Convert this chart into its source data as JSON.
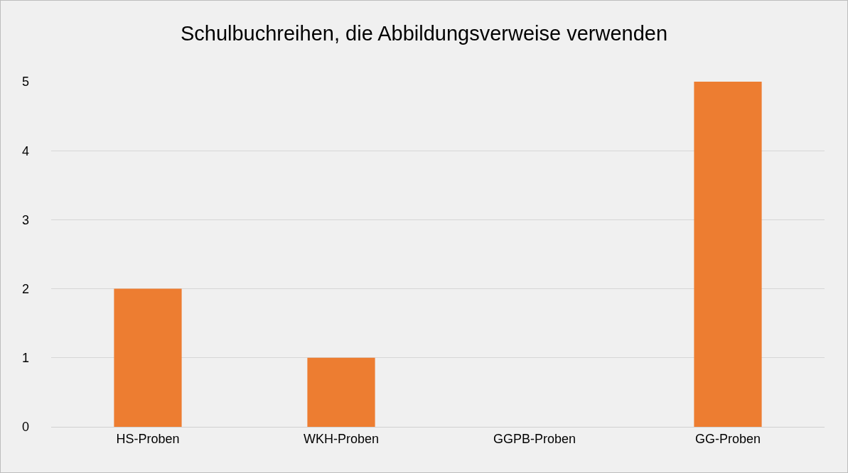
{
  "chart_data": {
    "type": "bar",
    "title": "Schulbuchreihen, die Abbildungsverweise verwenden",
    "categories": [
      "HS-Proben",
      "WKH-Proben",
      "GGPB-Proben",
      "GG-Proben"
    ],
    "values": [
      2,
      1,
      0,
      5
    ],
    "color": "#ed7d31",
    "ylim": [
      0,
      5
    ],
    "yticks": [
      0,
      1,
      2,
      3,
      4,
      5
    ],
    "grid": "y",
    "legend": false
  }
}
